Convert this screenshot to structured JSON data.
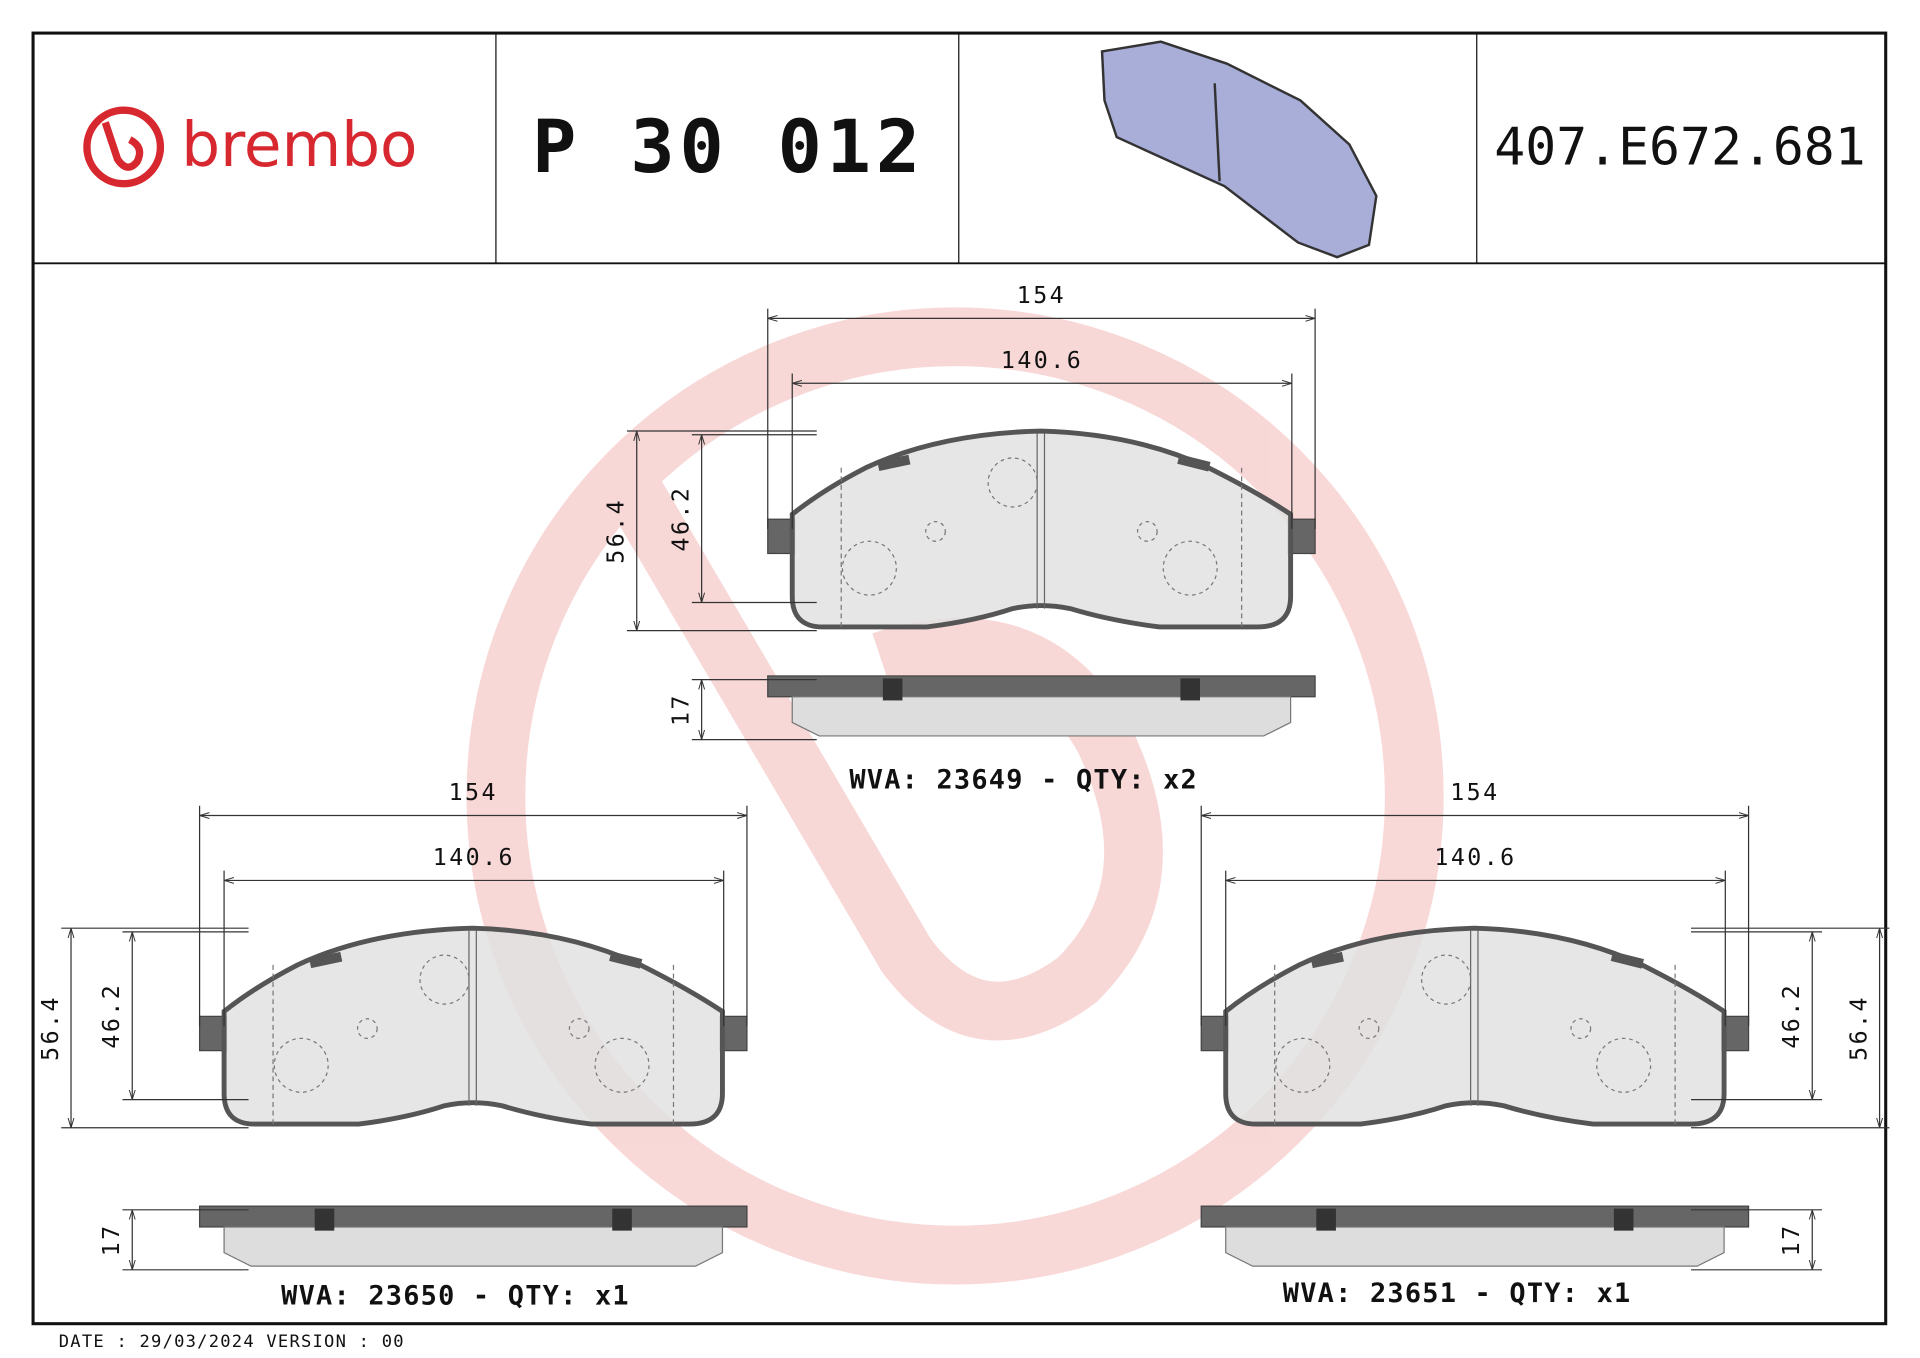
{
  "header": {
    "brand": "brembo",
    "part_number": "P 30 012",
    "code": "407.E672.681"
  },
  "pads": [
    {
      "width_outer": "154",
      "width_inner": "140.6",
      "height_outer": "56.4",
      "height_inner": "46.2",
      "thickness": "17",
      "label": "WVA: 23649 - QTY: x2"
    },
    {
      "width_outer": "154",
      "width_inner": "140.6",
      "height_outer": "56.4",
      "height_inner": "46.2",
      "thickness": "17",
      "label": "WVA: 23650 - QTY: x1"
    },
    {
      "width_outer": "154",
      "width_inner": "140.6",
      "height_outer": "56.4",
      "height_inner": "46.2",
      "thickness": "17",
      "label": "WVA: 23651 - QTY: x1"
    }
  ],
  "footer": {
    "date_version": "DATE : 29/03/2024 VERSION : 00"
  }
}
